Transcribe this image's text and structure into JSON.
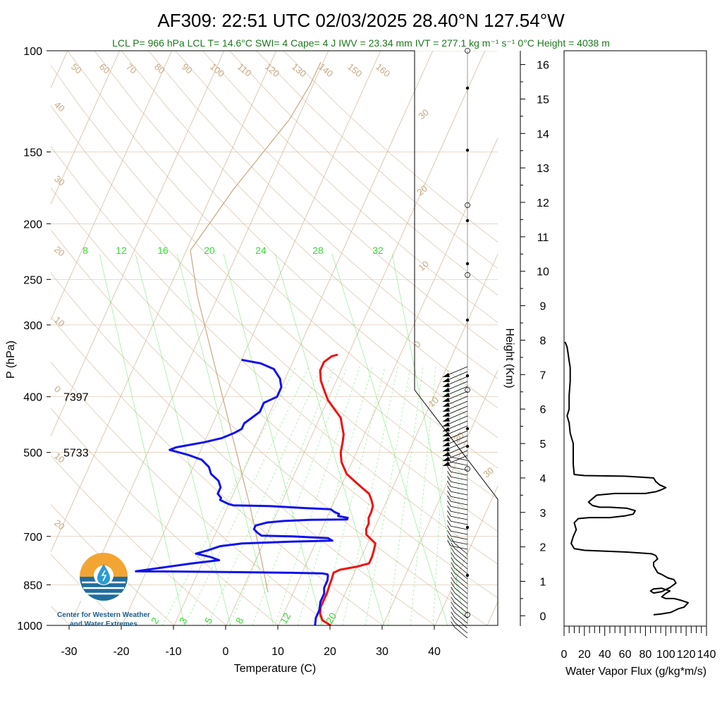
{
  "chart_data": [
    {
      "type": "line",
      "title": "AF309: 22:51 UTC 02/03/2025  28.40°N 127.54°W",
      "subtitle": "LCL P= 966 hPa  LCL T= 14.6°C  SWI= 4  Cape= 4 J  IWV = 23.34 mm  IVT = 277.1 kg m⁻¹ s⁻¹  0°C Height = 4038 m",
      "xlabel": "Temperature (C)",
      "ylabel": "P (hPa)",
      "y_scale": "log",
      "ylim": [
        1000,
        100
      ],
      "xlim": [
        -33,
        37
      ],
      "x_ticks": [
        "-30",
        "-20",
        "-10",
        "0",
        "10",
        "20",
        "30",
        "40"
      ],
      "y_ticks": [
        "100",
        "150",
        "200",
        "250",
        "300",
        "400",
        "500",
        "700",
        "850",
        "1000"
      ],
      "isotherm_labels": [
        "50",
        "60",
        "70",
        "80",
        "90",
        "100",
        "110",
        "120",
        "130",
        "140",
        "150",
        "160"
      ],
      "dry_adiabat_labels": [
        "40",
        "30",
        "20",
        "10",
        "0",
        "10",
        "20"
      ],
      "mixing_ratio_top_labels": [
        "8",
        "12",
        "16",
        "20",
        "24",
        "28",
        "32"
      ],
      "mixing_ratio_bottom_labels": [
        "2",
        "3",
        "5",
        "8",
        "12",
        "20"
      ],
      "right_edge_labels": [
        "30",
        "20",
        "10",
        "0",
        "10",
        "20",
        "30"
      ],
      "height_annotations": [
        {
          "p": 400,
          "text": "7397"
        },
        {
          "p": 500,
          "text": "5733"
        }
      ],
      "series": [
        {
          "color": "#ee1111",
          "points": [
            [
              20,
              1000
            ],
            [
              18,
              980
            ],
            [
              17,
              955
            ],
            [
              16.5,
              930
            ],
            [
              16.5,
              900
            ],
            [
              16.5,
              880
            ],
            [
              16.3,
              850
            ],
            [
              16.2,
              830
            ],
            [
              16,
              810
            ],
            [
              17,
              800
            ],
            [
              20,
              790
            ],
            [
              22,
              780
            ],
            [
              22,
              760
            ],
            [
              21.8,
              740
            ],
            [
              21.5,
              720
            ],
            [
              20,
              705
            ],
            [
              19,
              695
            ],
            [
              18.5,
              680
            ],
            [
              18.5,
              665
            ],
            [
              18,
              650
            ],
            [
              18,
              635
            ],
            [
              17.8,
              620
            ],
            [
              17,
              605
            ],
            [
              16,
              590
            ],
            [
              14,
              575
            ],
            [
              12,
              560
            ],
            [
              10,
              545
            ],
            [
              8,
              520
            ],
            [
              7,
              500
            ],
            [
              6.5,
              480
            ],
            [
              6,
              465
            ],
            [
              5,
              450
            ],
            [
              4,
              435
            ],
            [
              2,
              420
            ],
            [
              0,
              405
            ],
            [
              -1.5,
              390
            ],
            [
              -3,
              375
            ],
            [
              -4,
              360
            ],
            [
              -4,
              348
            ],
            [
              -3,
              340
            ],
            [
              -2,
              338
            ]
          ]
        },
        {
          "color": "#1111ee",
          "points": [
            [
              17,
              1000
            ],
            [
              16.5,
              970
            ],
            [
              16.5,
              940
            ],
            [
              16,
              910
            ],
            [
              16,
              880
            ],
            [
              15.5,
              860
            ],
            [
              15.5,
              835
            ],
            [
              15.2,
              820
            ],
            [
              15,
              815
            ],
            [
              14,
              812
            ],
            [
              8,
              810
            ],
            [
              -2,
              808
            ],
            [
              -12,
              806
            ],
            [
              -22,
              805
            ],
            [
              -12,
              780
            ],
            [
              -7,
              770
            ],
            [
              -9,
              760
            ],
            [
              -12,
              750
            ],
            [
              -10,
              740
            ],
            [
              -8,
              728
            ],
            [
              -4,
              720
            ],
            [
              5,
              715
            ],
            [
              13,
              712
            ],
            [
              12,
              705
            ],
            [
              5,
              700
            ],
            [
              -1,
              698
            ],
            [
              -2,
              690
            ],
            [
              -3,
              680
            ],
            [
              -3,
              670
            ],
            [
              -1,
              662
            ],
            [
              2,
              658
            ],
            [
              7,
              655
            ],
            [
              14,
              654
            ],
            [
              14,
              650
            ],
            [
              12,
              645
            ],
            [
              12,
              640
            ],
            [
              11,
              635
            ],
            [
              10,
              628
            ],
            [
              5,
              625
            ],
            [
              -2,
              620
            ],
            [
              -9,
              618
            ],
            [
              -10,
              615
            ],
            [
              -11,
              610
            ],
            [
              -12,
              605
            ],
            [
              -12,
              600
            ],
            [
              -13,
              590
            ],
            [
              -13,
              575
            ],
            [
              -14,
              560
            ],
            [
              -16,
              545
            ],
            [
              -17,
              530
            ],
            [
              -19,
              515
            ],
            [
              -22,
              505
            ],
            [
              -26,
              495
            ],
            [
              -25,
              490
            ],
            [
              -20,
              480
            ],
            [
              -17,
              472
            ],
            [
              -15,
              462
            ],
            [
              -14,
              455
            ],
            [
              -14,
              445
            ],
            [
              -13,
              435
            ],
            [
              -12,
              425
            ],
            [
              -12,
              410
            ],
            [
              -10,
              400
            ],
            [
              -10,
              385
            ],
            [
              -11,
              372
            ],
            [
              -13,
              358
            ],
            [
              -16,
              350
            ],
            [
              -20,
              345
            ]
          ]
        }
      ]
    },
    {
      "type": "line",
      "xlabel": "Water Vapor Flux (g/kg*m/s)",
      "ylabel": "Height (Km)",
      "xlim": [
        0,
        140
      ],
      "ylim": [
        -0.3,
        16.4
      ],
      "x_ticks": [
        "0",
        "20",
        "40",
        "60",
        "80",
        "100",
        "120",
        "140"
      ],
      "y_ticks": [
        "0",
        "1",
        "2",
        "3",
        "4",
        "5",
        "6",
        "7",
        "8",
        "9",
        "10",
        "11",
        "12",
        "13",
        "14",
        "15",
        "16"
      ],
      "series": [
        {
          "color": "#000000",
          "points": [
            [
              88,
              0.03
            ],
            [
              95,
              0.05
            ],
            [
              105,
              0.1
            ],
            [
              112,
              0.2
            ],
            [
              118,
              0.25
            ],
            [
              122,
              0.38
            ],
            [
              115,
              0.45
            ],
            [
              108,
              0.5
            ],
            [
              100,
              0.5
            ],
            [
              96,
              0.55
            ],
            [
              100,
              0.65
            ],
            [
              104,
              0.72
            ],
            [
              96,
              0.8
            ],
            [
              88,
              0.78
            ],
            [
              85,
              0.72
            ],
            [
              88,
              0.66
            ],
            [
              96,
              0.7
            ],
            [
              104,
              0.82
            ],
            [
              110,
              0.95
            ],
            [
              108,
              1.05
            ],
            [
              102,
              1.1
            ],
            [
              96,
              1.2
            ],
            [
              92,
              1.25
            ],
            [
              90,
              1.35
            ],
            [
              88,
              1.45
            ],
            [
              88,
              1.55
            ],
            [
              92,
              1.65
            ],
            [
              90,
              1.75
            ],
            [
              86,
              1.8
            ],
            [
              60,
              1.85
            ],
            [
              20,
              1.9
            ],
            [
              10,
              1.95
            ],
            [
              7,
              2.1
            ],
            [
              9,
              2.3
            ],
            [
              12,
              2.5
            ],
            [
              10,
              2.7
            ],
            [
              14,
              2.82
            ],
            [
              25,
              2.85
            ],
            [
              45,
              2.85
            ],
            [
              60,
              2.9
            ],
            [
              68,
              2.95
            ],
            [
              70,
              3.05
            ],
            [
              62,
              3.12
            ],
            [
              45,
              3.15
            ],
            [
              35,
              3.15
            ],
            [
              28,
              3.2
            ],
            [
              24,
              3.3
            ],
            [
              28,
              3.4
            ],
            [
              32,
              3.5
            ],
            [
              50,
              3.55
            ],
            [
              80,
              3.55
            ],
            [
              90,
              3.6
            ],
            [
              95,
              3.65
            ],
            [
              100,
              3.72
            ],
            [
              94,
              3.8
            ],
            [
              90,
              3.9
            ],
            [
              88,
              4.0
            ],
            [
              60,
              4.05
            ],
            [
              20,
              4.07
            ],
            [
              10,
              4.1
            ],
            [
              9,
              4.4
            ],
            [
              9,
              5.0
            ],
            [
              6,
              5.3
            ],
            [
              5,
              5.6
            ],
            [
              3,
              5.8
            ],
            [
              5,
              6.0
            ],
            [
              5,
              6.4
            ],
            [
              6,
              6.8
            ],
            [
              6,
              7.2
            ],
            [
              5,
              7.4
            ],
            [
              4,
              7.6
            ],
            [
              3,
              7.8
            ],
            [
              1,
              7.95
            ]
          ]
        }
      ]
    }
  ],
  "logo": {
    "line1": "Center for Western Weather",
    "line2": "and Water Extremes",
    "icon": "water-drop-logo-icon"
  },
  "colors": {
    "temperature": "#ee1111",
    "dewpoint": "#1111ee",
    "isotherm": "#c8a882",
    "mixing_ratio": "#33dd33",
    "flux": "#000000"
  }
}
